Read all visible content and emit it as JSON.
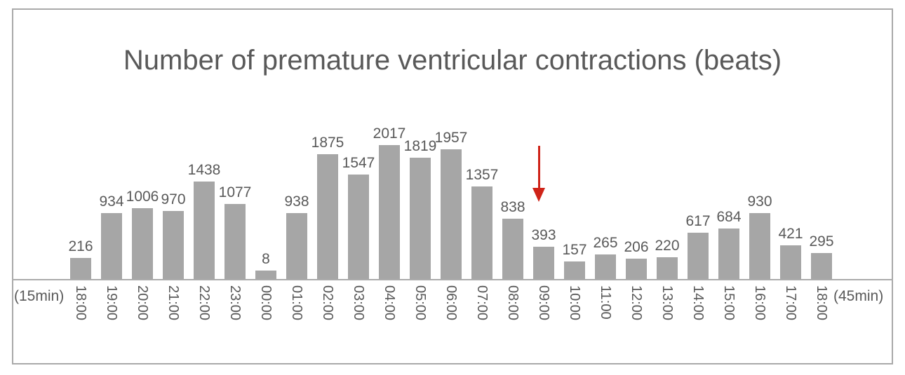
{
  "chart_data": {
    "type": "bar",
    "title": "Number of premature ventricular contractions (beats)",
    "categories": [
      "18:00",
      "19:00",
      "20:00",
      "21:00",
      "22:00",
      "23:00",
      "00:00",
      "01:00",
      "02:00",
      "03:00",
      "04:00",
      "05:00",
      "06:00",
      "07:00",
      "08:00",
      "09:00",
      "10:00",
      "11:00",
      "12:00",
      "13:00",
      "14:00",
      "15:00",
      "16:00",
      "17:00",
      "18:00"
    ],
    "values": [
      216,
      934,
      1006,
      970,
      1438,
      1077,
      8,
      938,
      1875,
      1547,
      2017,
      1819,
      1957,
      1357,
      838,
      393,
      157,
      265,
      206,
      220,
      617,
      684,
      930,
      421,
      295
    ],
    "data_labels_shown": true,
    "xlabel_left": "(15min)",
    "xlabel_right": "(45min)",
    "ylabel": "",
    "ylim": [
      0,
      2017
    ],
    "grid": false,
    "legend": "none",
    "bar_color": "#a6a6a6",
    "text_color": "#595959",
    "annotation": {
      "type": "arrow-down",
      "color": "#cf2318",
      "points_at_category": "09:00",
      "points_at_value": 393
    }
  }
}
